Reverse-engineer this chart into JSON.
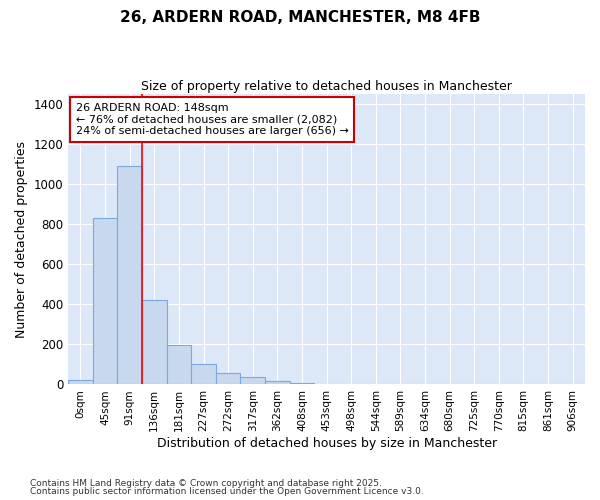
{
  "title_line1": "26, ARDERN ROAD, MANCHESTER, M8 4FB",
  "title_line2": "Size of property relative to detached houses in Manchester",
  "xlabel": "Distribution of detached houses by size in Manchester",
  "ylabel": "Number of detached properties",
  "bar_color": "#c8d8ee",
  "bar_edge_color": "#7aaadd",
  "background_color": "#dce8f8",
  "grid_color": "#ffffff",
  "categories": [
    "0sqm",
    "45sqm",
    "91sqm",
    "136sqm",
    "181sqm",
    "227sqm",
    "272sqm",
    "317sqm",
    "362sqm",
    "408sqm",
    "453sqm",
    "498sqm",
    "544sqm",
    "589sqm",
    "634sqm",
    "680sqm",
    "725sqm",
    "770sqm",
    "815sqm",
    "861sqm",
    "906sqm"
  ],
  "values": [
    20,
    830,
    1090,
    420,
    195,
    100,
    55,
    35,
    15,
    8,
    0,
    0,
    0,
    0,
    0,
    0,
    0,
    0,
    0,
    0,
    0
  ],
  "ylim": [
    0,
    1450
  ],
  "yticks": [
    0,
    200,
    400,
    600,
    800,
    1000,
    1200,
    1400
  ],
  "annotation_title": "26 ARDERN ROAD: 148sqm",
  "annotation_line2": "← 76% of detached houses are smaller (2,082)",
  "annotation_line3": "24% of semi-detached houses are larger (656) →",
  "annotation_box_color": "#ffffff",
  "annotation_box_edge_color": "#cc0000",
  "red_line_bin": 3,
  "footnote_line1": "Contains HM Land Registry data © Crown copyright and database right 2025.",
  "footnote_line2": "Contains public sector information licensed under the Open Government Licence v3.0.",
  "figsize": [
    6.0,
    5.0
  ],
  "dpi": 100
}
